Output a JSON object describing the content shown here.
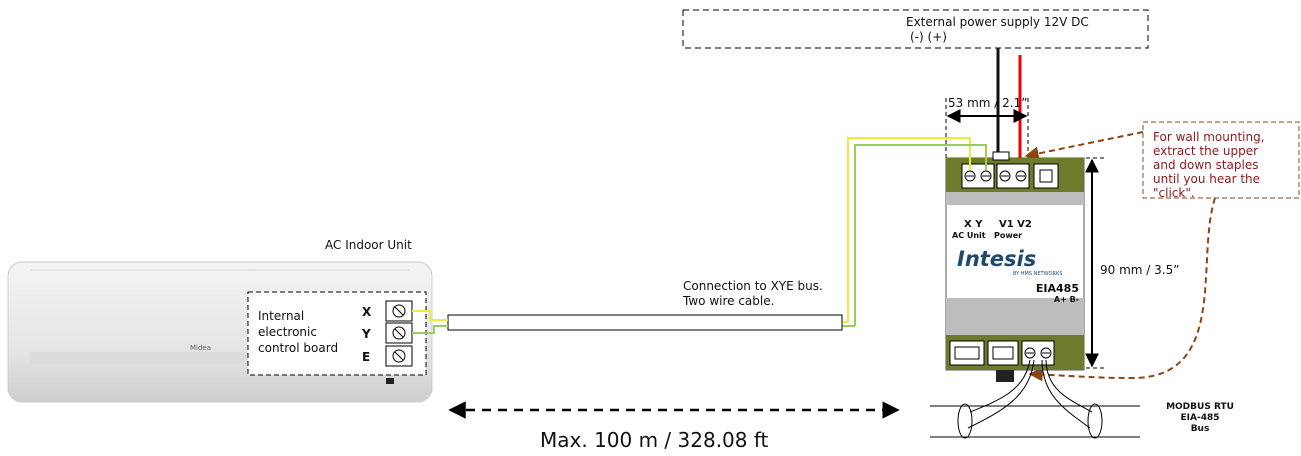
{
  "power_supply": {
    "title": "External power supply 12V DC",
    "polarity": "(-) (+)"
  },
  "width_dimension": "53 mm / 2.1”",
  "height_dimension": "90 mm / 3.5”",
  "note": {
    "lines": [
      "For wall mounting,",
      "extract the upper",
      "and down staples",
      "until you hear the",
      "\"click\"."
    ]
  },
  "ac_unit": {
    "title": "AC Indoor Unit",
    "brand": "Midea",
    "board_lines": [
      "Internal",
      "electronic",
      "control board"
    ],
    "terminals": [
      "X",
      "Y",
      "E"
    ]
  },
  "cable": {
    "lines": [
      "Connection to XYE bus.",
      "Two wire cable."
    ]
  },
  "module": {
    "xy": "X Y",
    "v1v2": "V1 V2",
    "ac_unit": "AC Unit",
    "power": "Power",
    "brand": "Intesis",
    "brand_sub": "BY HMS NETWORKS",
    "model": "EIA485",
    "ab": "A+ B-"
  },
  "bus": {
    "lines": [
      "MODBUS RTU",
      "EIA-485",
      "Bus"
    ]
  },
  "distance": "Max. 100 m / 328.08 ft"
}
